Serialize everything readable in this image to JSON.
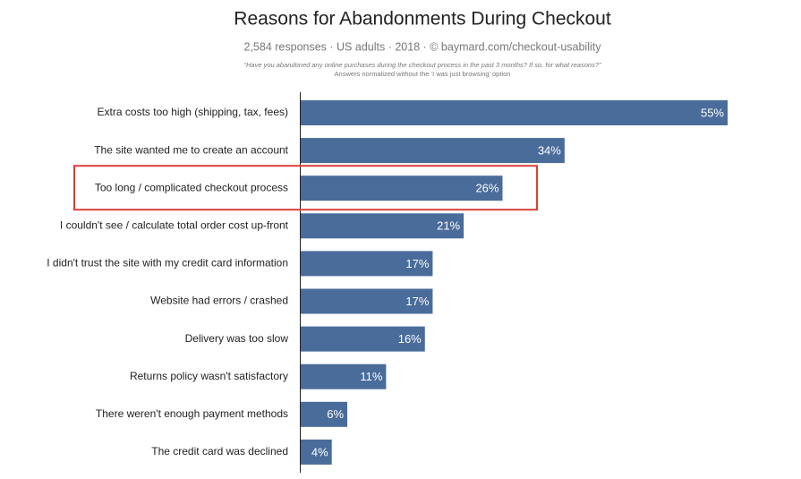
{
  "chart_data": {
    "type": "bar",
    "orientation": "horizontal",
    "title": "Reasons for Abandonments During Checkout",
    "subtitle": "2,584 responses  ·  US adults  ·  2018  ·  © baymard.com/checkout-usability",
    "notes": [
      "“Have you abandoned any online purchases during the checkout process in the past 3 months? If so, for what reasons?”",
      "Answers normalized without the ‘I was just browsing’ option"
    ],
    "categories": [
      "Extra costs too high (shipping, tax, fees)",
      "The site wanted me to create an account",
      "Too long / complicated checkout process",
      "I couldn't see / calculate total order cost up-front",
      "I didn't trust the site with my credit card information",
      "Website had errors / crashed",
      "Delivery was too slow",
      "Returns policy wasn't satisfactory",
      "There weren't enough payment methods",
      "The credit card was declined"
    ],
    "values": [
      55,
      34,
      26,
      21,
      17,
      17,
      16,
      11,
      6,
      4
    ],
    "value_labels": [
      "55%",
      "34%",
      "26%",
      "21%",
      "17%",
      "17%",
      "16%",
      "11%",
      "6%",
      "4%"
    ],
    "color": "#4a6c9b",
    "highlight": 2,
    "highlight_color": "#d9403a"
  }
}
